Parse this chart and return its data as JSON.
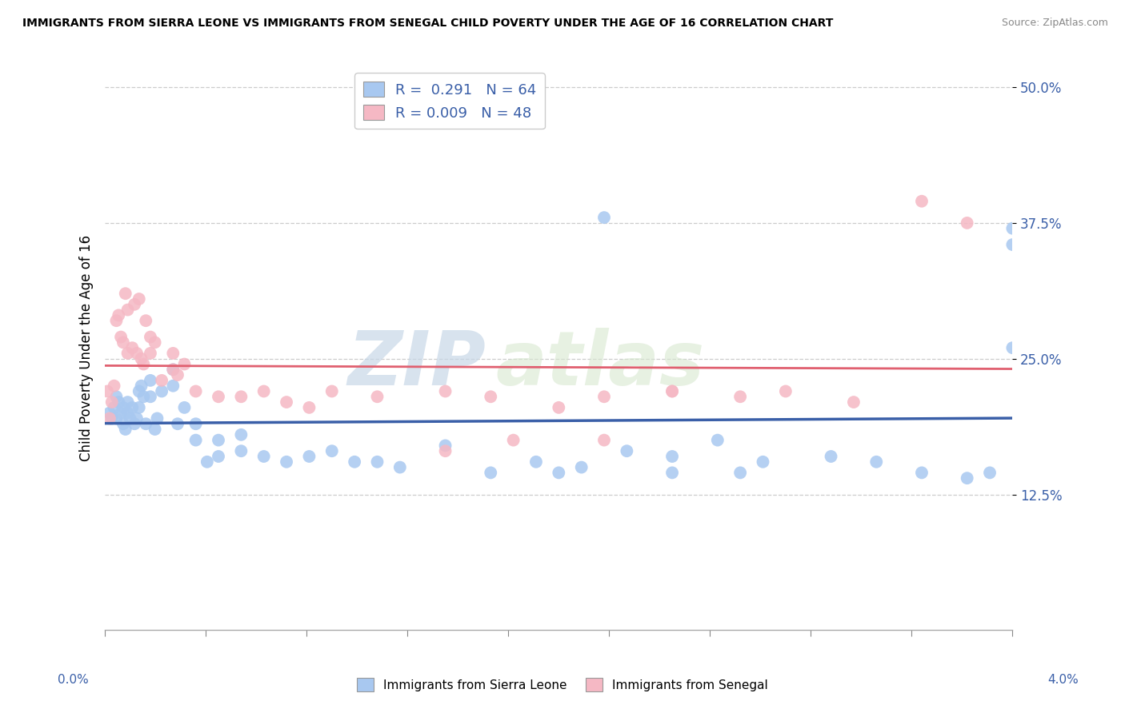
{
  "title": "IMMIGRANTS FROM SIERRA LEONE VS IMMIGRANTS FROM SENEGAL CHILD POVERTY UNDER THE AGE OF 16 CORRELATION CHART",
  "source": "Source: ZipAtlas.com",
  "ylabel": "Child Poverty Under the Age of 16",
  "xmin": 0.0,
  "xmax": 0.04,
  "ymin": 0.0,
  "ymax": 0.52,
  "yticks": [
    0.125,
    0.25,
    0.375,
    0.5
  ],
  "ytick_labels": [
    "12.5%",
    "25.0%",
    "37.5%",
    "50.0%"
  ],
  "legend1_label": "R =  0.291   N = 64",
  "legend2_label": "R = 0.009   N = 48",
  "color_blue": "#a8c8f0",
  "color_pink": "#f5b8c4",
  "line_color_blue": "#3a5fa8",
  "line_color_pink": "#e06070",
  "watermark_zip": "ZIP",
  "watermark_atlas": "atlas",
  "sl_x": [
    0.0002,
    0.0003,
    0.0004,
    0.0005,
    0.0005,
    0.0006,
    0.0007,
    0.0008,
    0.0008,
    0.0009,
    0.001,
    0.001,
    0.0011,
    0.0012,
    0.0013,
    0.0014,
    0.0015,
    0.0015,
    0.0016,
    0.0017,
    0.0018,
    0.002,
    0.002,
    0.0022,
    0.0023,
    0.0025,
    0.003,
    0.003,
    0.0032,
    0.0035,
    0.004,
    0.004,
    0.0045,
    0.005,
    0.005,
    0.006,
    0.006,
    0.007,
    0.008,
    0.009,
    0.01,
    0.011,
    0.012,
    0.013,
    0.015,
    0.017,
    0.019,
    0.021,
    0.023,
    0.025,
    0.027,
    0.029,
    0.032,
    0.034,
    0.036,
    0.038,
    0.039,
    0.04,
    0.04,
    0.04,
    0.025,
    0.028,
    0.022,
    0.02
  ],
  "sl_y": [
    0.2,
    0.195,
    0.205,
    0.215,
    0.195,
    0.21,
    0.2,
    0.205,
    0.19,
    0.185,
    0.21,
    0.2,
    0.195,
    0.205,
    0.19,
    0.195,
    0.22,
    0.205,
    0.225,
    0.215,
    0.19,
    0.23,
    0.215,
    0.185,
    0.195,
    0.22,
    0.24,
    0.225,
    0.19,
    0.205,
    0.175,
    0.19,
    0.155,
    0.16,
    0.175,
    0.18,
    0.165,
    0.16,
    0.155,
    0.16,
    0.165,
    0.155,
    0.155,
    0.15,
    0.17,
    0.145,
    0.155,
    0.15,
    0.165,
    0.16,
    0.175,
    0.155,
    0.16,
    0.155,
    0.145,
    0.14,
    0.145,
    0.37,
    0.355,
    0.26,
    0.145,
    0.145,
    0.38,
    0.145
  ],
  "sn_x": [
    0.0001,
    0.0002,
    0.0003,
    0.0004,
    0.0005,
    0.0006,
    0.0007,
    0.0008,
    0.0009,
    0.001,
    0.001,
    0.0012,
    0.0013,
    0.0014,
    0.0015,
    0.0016,
    0.0017,
    0.0018,
    0.002,
    0.002,
    0.0022,
    0.0025,
    0.003,
    0.003,
    0.0032,
    0.0035,
    0.004,
    0.005,
    0.006,
    0.007,
    0.008,
    0.009,
    0.01,
    0.012,
    0.015,
    0.017,
    0.02,
    0.022,
    0.025,
    0.028,
    0.03,
    0.033,
    0.036,
    0.038,
    0.025,
    0.022,
    0.018,
    0.015
  ],
  "sn_y": [
    0.22,
    0.195,
    0.21,
    0.225,
    0.285,
    0.29,
    0.27,
    0.265,
    0.31,
    0.295,
    0.255,
    0.26,
    0.3,
    0.255,
    0.305,
    0.25,
    0.245,
    0.285,
    0.27,
    0.255,
    0.265,
    0.23,
    0.255,
    0.24,
    0.235,
    0.245,
    0.22,
    0.215,
    0.215,
    0.22,
    0.21,
    0.205,
    0.22,
    0.215,
    0.22,
    0.215,
    0.205,
    0.215,
    0.22,
    0.215,
    0.22,
    0.21,
    0.395,
    0.375,
    0.22,
    0.175,
    0.175,
    0.165
  ]
}
